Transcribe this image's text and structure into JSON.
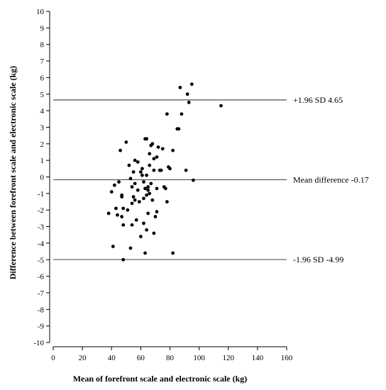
{
  "chart_data": {
    "type": "scatter",
    "title": "",
    "xlabel": "Mean of forefront scale and electronic scale (kg)",
    "ylabel": "Difference between forefront scale and electronic scale (kg)",
    "xlim": [
      0,
      160
    ],
    "ylim": [
      -10,
      10
    ],
    "x_ticks": [
      0,
      20,
      40,
      60,
      80,
      100,
      120,
      140,
      160
    ],
    "y_ticks": [
      10,
      9,
      8,
      7,
      6,
      5,
      4,
      3,
      2,
      1,
      0,
      -1,
      -2,
      -3,
      -4,
      -5,
      -6,
      -7,
      -8,
      -9,
      -10
    ],
    "grid": false,
    "reference_lines": [
      {
        "label": "+1.96 SD 4.65",
        "y": 4.65
      },
      {
        "label": "Mean difference -0.17",
        "y": -0.17
      },
      {
        "label": "-1.96 SD -4.99",
        "y": -4.99
      }
    ],
    "points": [
      [
        38,
        -2.2
      ],
      [
        40,
        -0.9
      ],
      [
        41,
        -4.2
      ],
      [
        42,
        -0.5
      ],
      [
        43,
        -1.9
      ],
      [
        44,
        -2.3
      ],
      [
        45,
        -0.3
      ],
      [
        46,
        1.6
      ],
      [
        47,
        -1.1
      ],
      [
        47,
        -1.2
      ],
      [
        47,
        -2.4
      ],
      [
        48,
        -2.9
      ],
      [
        48,
        -5.0
      ],
      [
        48,
        -1.9
      ],
      [
        50,
        2.1
      ],
      [
        51,
        -2.0
      ],
      [
        52,
        0.7
      ],
      [
        53,
        -0.1
      ],
      [
        53,
        -4.3
      ],
      [
        54,
        -2.9
      ],
      [
        54,
        -0.6
      ],
      [
        54,
        -1.6
      ],
      [
        55,
        0.3
      ],
      [
        55,
        -1.2
      ],
      [
        56,
        1.0
      ],
      [
        56,
        -0.4
      ],
      [
        56,
        -1.4
      ],
      [
        57,
        -2.6
      ],
      [
        58,
        0.9
      ],
      [
        58,
        -0.8
      ],
      [
        59,
        -1.5
      ],
      [
        60,
        -3.6
      ],
      [
        60,
        0.3
      ],
      [
        61,
        0.5
      ],
      [
        61,
        0.1
      ],
      [
        62,
        -0.3
      ],
      [
        62,
        -1.3
      ],
      [
        62,
        -2.8
      ],
      [
        63,
        2.3
      ],
      [
        63,
        -0.7
      ],
      [
        63,
        -4.6
      ],
      [
        64,
        2.3
      ],
      [
        64,
        0.1
      ],
      [
        64,
        -1.1
      ],
      [
        64,
        -3.2
      ],
      [
        65,
        -0.6
      ],
      [
        65,
        -0.8
      ],
      [
        65,
        -2.2
      ],
      [
        66,
        1.4
      ],
      [
        66,
        0.7
      ],
      [
        66,
        -1.0
      ],
      [
        67,
        1.9
      ],
      [
        67,
        -0.4
      ],
      [
        68,
        2.0
      ],
      [
        68,
        -1.4
      ],
      [
        69,
        1.1
      ],
      [
        69,
        0.4
      ],
      [
        69,
        -3.4
      ],
      [
        70,
        -2.4
      ],
      [
        71,
        1.2
      ],
      [
        71,
        -0.7
      ],
      [
        71,
        -2.1
      ],
      [
        72,
        1.8
      ],
      [
        73,
        0.4
      ],
      [
        74,
        0.4
      ],
      [
        75,
        1.7
      ],
      [
        76,
        -0.6
      ],
      [
        77,
        -0.7
      ],
      [
        78,
        3.8
      ],
      [
        78,
        -1.5
      ],
      [
        79,
        0.6
      ],
      [
        80,
        0.5
      ],
      [
        82,
        1.6
      ],
      [
        82,
        -4.6
      ],
      [
        85,
        2.9
      ],
      [
        86,
        2.9
      ],
      [
        87,
        5.4
      ],
      [
        88,
        3.8
      ],
      [
        91,
        0.4
      ],
      [
        92,
        5.0
      ],
      [
        93,
        4.5
      ],
      [
        95,
        5.6
      ],
      [
        96,
        -0.2
      ],
      [
        115,
        4.3
      ]
    ]
  }
}
